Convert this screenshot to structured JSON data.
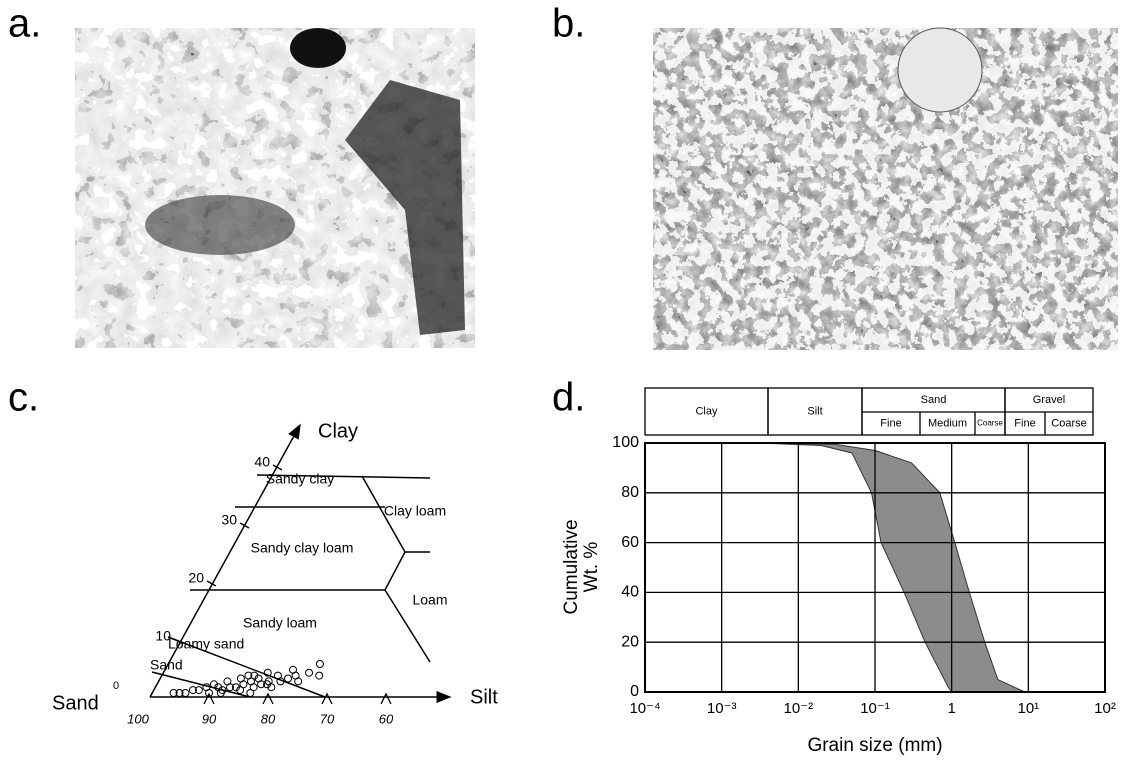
{
  "panels": {
    "a": {
      "label": "a."
    },
    "b": {
      "label": "b."
    }
  },
  "ternary": {
    "label": "c.",
    "top_axis": "Clay",
    "right_axis": "Silt",
    "corner": "Sand",
    "clay_ticks": [
      0,
      10,
      20,
      30,
      40
    ],
    "sand_ticks": [
      100,
      90,
      80,
      70,
      60
    ],
    "regions": [
      "Sandy clay",
      "Clay loam",
      "Sandy clay loam",
      "Loam",
      "Sandy loam",
      "Loamy sand",
      "Sand"
    ],
    "samples": {
      "sand": [
        96,
        95,
        94,
        93,
        92,
        91,
        90,
        90,
        89,
        88,
        88,
        87,
        86,
        86,
        85,
        85,
        84,
        84,
        83,
        83,
        82,
        82,
        81,
        80,
        80,
        79,
        78,
        78,
        77,
        76,
        75,
        74,
        73,
        88,
        85,
        83,
        81
      ],
      "clay": [
        0,
        0,
        0,
        0.5,
        0.5,
        1,
        0,
        1.5,
        1,
        0.5,
        2,
        1,
        1,
        2.5,
        0.5,
        1.5,
        2,
        3,
        1,
        2.5,
        1.5,
        3.5,
        2,
        1,
        3,
        2,
        2.5,
        4,
        3,
        2,
        3.5,
        5,
        3,
        0,
        3,
        0,
        1.5
      ]
    }
  },
  "chart_data": {
    "type": "band",
    "label": "d.",
    "ylabel": [
      "Cumulative",
      "Wt. %"
    ],
    "xlabel": "Grain size (mm)",
    "xlog": true,
    "grid": true,
    "color": "#8c8c8c",
    "xlim": [
      0.0001,
      100
    ],
    "ylim": [
      0,
      100
    ],
    "xticks": [
      {
        "value": 0.0001,
        "label": "10⁻⁴"
      },
      {
        "value": 0.001,
        "label": "10⁻³"
      },
      {
        "value": 0.01,
        "label": "10⁻²"
      },
      {
        "value": 0.1,
        "label": "10⁻¹"
      },
      1,
      {
        "value": 10,
        "label": "10¹"
      },
      {
        "value": 100,
        "label": "10²"
      }
    ],
    "yticks": [
      0,
      20,
      40,
      60,
      80,
      100
    ],
    "size_classes": [
      {
        "name": "Clay"
      },
      {
        "name": "Silt"
      },
      {
        "name": "Sand",
        "parts": [
          "Fine",
          "Medium",
          "Coarse"
        ]
      },
      {
        "name": "Gravel",
        "parts": [
          "Fine",
          "Coarse"
        ]
      }
    ],
    "series": [
      {
        "x": [
          0.003,
          0.02,
          0.05,
          0.09,
          0.12,
          0.24,
          0.45,
          0.9,
          1
        ],
        "values": [
          100,
          99,
          96,
          80,
          60,
          40,
          20,
          2,
          0
        ]
      },
      {
        "x": [
          0.003,
          0.03,
          0.1,
          0.3,
          0.7,
          1.1,
          1.7,
          2.7,
          4,
          9
        ],
        "values": [
          100,
          99.5,
          97,
          92,
          80,
          60,
          40,
          20,
          5,
          0
        ]
      }
    ]
  }
}
